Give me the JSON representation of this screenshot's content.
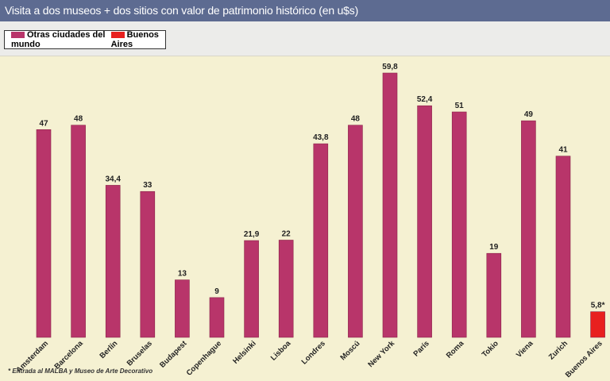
{
  "chart_data": {
    "type": "bar",
    "title": "Visita a dos museos + dos sitios con valor de patrimonio histórico (en u$s)",
    "categories": [
      "Amsterdam",
      "Barcelona",
      "Berlín",
      "Bruselas",
      "Budapest",
      "Copenhague",
      "Helsinki",
      "Lisboa",
      "Londres",
      "Moscú",
      "New York",
      "París",
      "Roma",
      "Tokio",
      "Viena",
      "Zurich",
      "Buenos Aires"
    ],
    "values": [
      47,
      48,
      34.4,
      33,
      13,
      9,
      21.9,
      22,
      43.8,
      48,
      59.8,
      52.4,
      51,
      19,
      49,
      41,
      5.8
    ],
    "labels": [
      "47",
      "48",
      "34,4",
      "33",
      "13",
      "9",
      "21,9",
      "22",
      "43,8",
      "48",
      "59,8",
      "52,4",
      "51",
      "19",
      "49",
      "41",
      "5,8*"
    ],
    "series": [
      {
        "name": "Otras ciudades del mundo",
        "color": "#b8356a"
      },
      {
        "name": "Buenos Aires",
        "color": "#e8201f"
      }
    ],
    "highlight_category": "Buenos Aires",
    "ylim": [
      0,
      62
    ],
    "grid": false,
    "legend": "top-left",
    "footnote": "* Entrada al MALBA y Museo de Arte Decorativo"
  }
}
